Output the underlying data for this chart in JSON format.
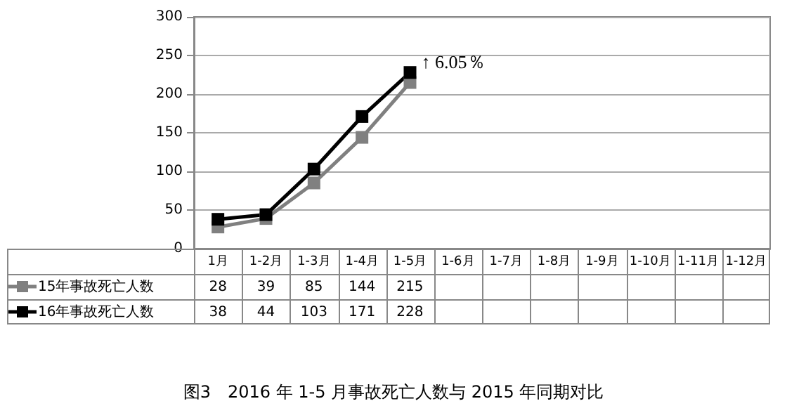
{
  "chart_data": {
    "type": "line",
    "title": "图3　2016 年 1-5 月事故死亡人数与 2015 年同期对比",
    "categories": [
      "1月",
      "1-2月",
      "1-3月",
      "1-4月",
      "1-5月",
      "1-6月",
      "1-7月",
      "1-8月",
      "1-9月",
      "1-10月",
      "1-11月",
      "1-12月"
    ],
    "series": [
      {
        "name": "15年事故死亡人数",
        "color": "#808080",
        "values": [
          28,
          39,
          85,
          144,
          215,
          null,
          null,
          null,
          null,
          null,
          null,
          null
        ]
      },
      {
        "name": "16年事故死亡人数",
        "color": "#000000",
        "values": [
          38,
          44,
          103,
          171,
          228,
          null,
          null,
          null,
          null,
          null,
          null,
          null
        ]
      }
    ],
    "ylim": [
      0,
      300
    ],
    "yticks": [
      0,
      50,
      100,
      150,
      200,
      250,
      300
    ],
    "grid": "y",
    "marker": "square",
    "line_style": "solid",
    "legend": "bottom",
    "data_labels": true,
    "annotations": [
      {
        "text": "↑ 6.05％",
        "x": "1-5月",
        "y": 228
      }
    ]
  }
}
